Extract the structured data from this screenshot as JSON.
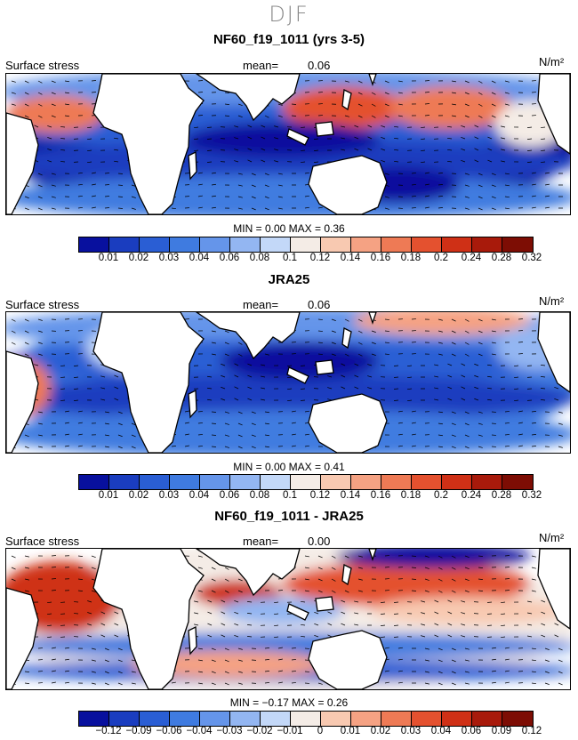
{
  "season": "DJF",
  "panels": [
    {
      "title": "NF60_f19_1011 (yrs 3-5)",
      "variable": "Surface stress",
      "mean_label": "mean=",
      "mean_value": "0.06",
      "units": "N/m²",
      "minmax": "MIN =   0.00  MAX =   0.36",
      "ticks": [
        "0.01",
        "0.02",
        "0.03",
        "0.04",
        "0.06",
        "0.08",
        "0.1",
        "0.12",
        "0.14",
        "0.16",
        "0.18",
        "0.2",
        "0.24",
        "0.28",
        "0.32"
      ]
    },
    {
      "title": "JRA25",
      "variable": "Surface stress",
      "mean_label": "mean=",
      "mean_value": "0.06",
      "units": "N/m²",
      "minmax": "MIN =   0.00  MAX =   0.41",
      "ticks": [
        "0.01",
        "0.02",
        "0.03",
        "0.04",
        "0.06",
        "0.08",
        "0.1",
        "0.12",
        "0.14",
        "0.16",
        "0.18",
        "0.2",
        "0.24",
        "0.28",
        "0.32"
      ]
    },
    {
      "title": "NF60_f19_1011 - JRA25",
      "variable": "Surface stress",
      "mean_label": "mean=",
      "mean_value": "0.00",
      "units": "N/m²",
      "minmax": "MIN =  −0.17  MAX =   0.26",
      "ticks": [
        "−0.12",
        "−0.09",
        "−0.06",
        "−0.04",
        "−0.03",
        "−0.02",
        "−0.01",
        "0",
        "0.01",
        "0.02",
        "0.03",
        "0.04",
        "0.06",
        "0.09",
        "0.12"
      ]
    }
  ],
  "colors": {
    "scale": [
      "#08109e",
      "#1a3dbf",
      "#2a5ed4",
      "#3f7be0",
      "#6595ea",
      "#93b6f2",
      "#c3d8f8",
      "#f4ece6",
      "#f8c9b1",
      "#f5a283",
      "#ee7a55",
      "#e4512f",
      "#cf3016",
      "#a81a0b",
      "#7d0d04"
    ],
    "land": "#ffffff",
    "coast": "#000000"
  }
}
